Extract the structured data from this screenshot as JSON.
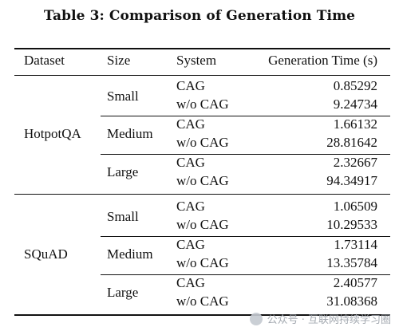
{
  "caption": "Table 3: Comparison of Generation Time",
  "headers": {
    "dataset": "Dataset",
    "size": "Size",
    "system": "System",
    "time": "Generation Time (s)"
  },
  "groups": [
    {
      "dataset": "HotpotQA",
      "sizes": [
        {
          "size": "Small",
          "rows": [
            {
              "system": "CAG",
              "time": "0.85292"
            },
            {
              "system": "w/o CAG",
              "time": "9.24734"
            }
          ]
        },
        {
          "size": "Medium",
          "rows": [
            {
              "system": "CAG",
              "time": "1.66132"
            },
            {
              "system": "w/o CAG",
              "time": "28.81642"
            }
          ]
        },
        {
          "size": "Large",
          "rows": [
            {
              "system": "CAG",
              "time": "2.32667"
            },
            {
              "system": "w/o CAG",
              "time": "94.34917"
            }
          ]
        }
      ]
    },
    {
      "dataset": "SQuAD",
      "sizes": [
        {
          "size": "Small",
          "rows": [
            {
              "system": "CAG",
              "time": "1.06509"
            },
            {
              "system": "w/o CAG",
              "time": "10.29533"
            }
          ]
        },
        {
          "size": "Medium",
          "rows": [
            {
              "system": "CAG",
              "time": "1.73114"
            },
            {
              "system": "w/o CAG",
              "time": "13.35784"
            }
          ]
        },
        {
          "size": "Large",
          "rows": [
            {
              "system": "CAG",
              "time": "2.40577"
            },
            {
              "system": "w/o CAG",
              "time": "31.08368"
            }
          ]
        }
      ]
    }
  ],
  "watermark": "公众号 · 互联网持续学习圈"
}
